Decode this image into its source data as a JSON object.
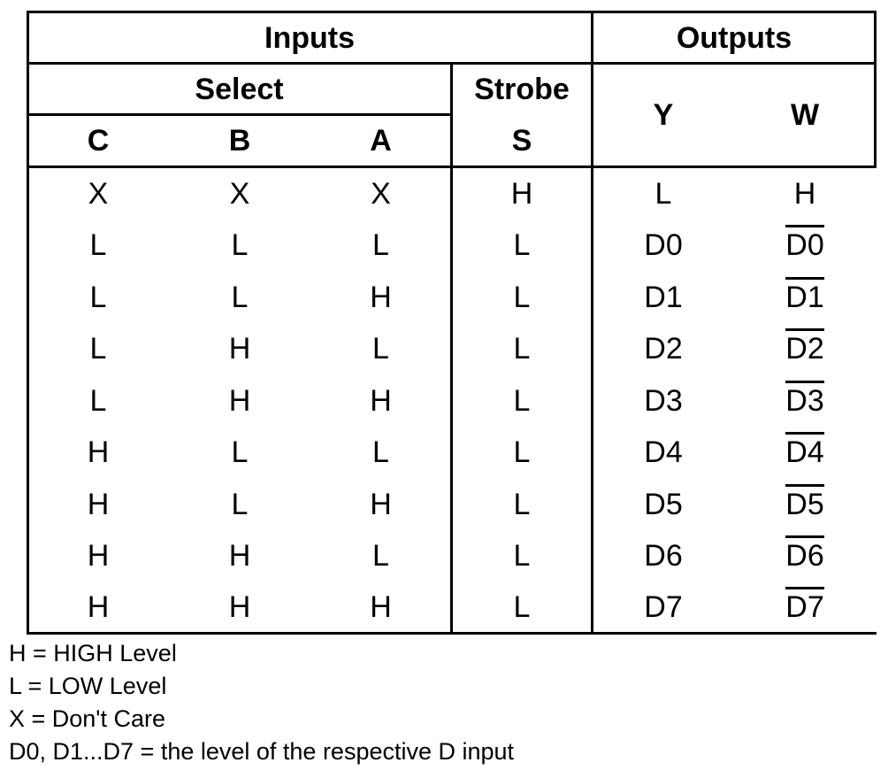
{
  "table": {
    "headers": {
      "inputs": "Inputs",
      "outputs": "Outputs",
      "select": "Select",
      "strobe": "Strobe",
      "c": "C",
      "b": "B",
      "a": "A",
      "s": "S",
      "y": "Y",
      "w": "W"
    },
    "rows": [
      {
        "c": "X",
        "b": "X",
        "a": "X",
        "s": "H",
        "y": "L",
        "w": "H",
        "w_bar": false
      },
      {
        "c": "L",
        "b": "L",
        "a": "L",
        "s": "L",
        "y": "D0",
        "w": "D0",
        "w_bar": true
      },
      {
        "c": "L",
        "b": "L",
        "a": "H",
        "s": "L",
        "y": "D1",
        "w": "D1",
        "w_bar": true
      },
      {
        "c": "L",
        "b": "H",
        "a": "L",
        "s": "L",
        "y": "D2",
        "w": "D2",
        "w_bar": true
      },
      {
        "c": "L",
        "b": "H",
        "a": "H",
        "s": "L",
        "y": "D3",
        "w": "D3",
        "w_bar": true
      },
      {
        "c": "H",
        "b": "L",
        "a": "L",
        "s": "L",
        "y": "D4",
        "w": "D4",
        "w_bar": true
      },
      {
        "c": "H",
        "b": "L",
        "a": "H",
        "s": "L",
        "y": "D5",
        "w": "D5",
        "w_bar": true
      },
      {
        "c": "H",
        "b": "H",
        "a": "L",
        "s": "L",
        "y": "D6",
        "w": "D6",
        "w_bar": true
      },
      {
        "c": "H",
        "b": "H",
        "a": "H",
        "s": "L",
        "y": "D7",
        "w": "D7",
        "w_bar": true
      }
    ]
  },
  "notes": [
    "H = HIGH Level",
    "L = LOW Level",
    "X = Don't Care",
    "D0, D1...D7 = the level of the respective D input"
  ]
}
